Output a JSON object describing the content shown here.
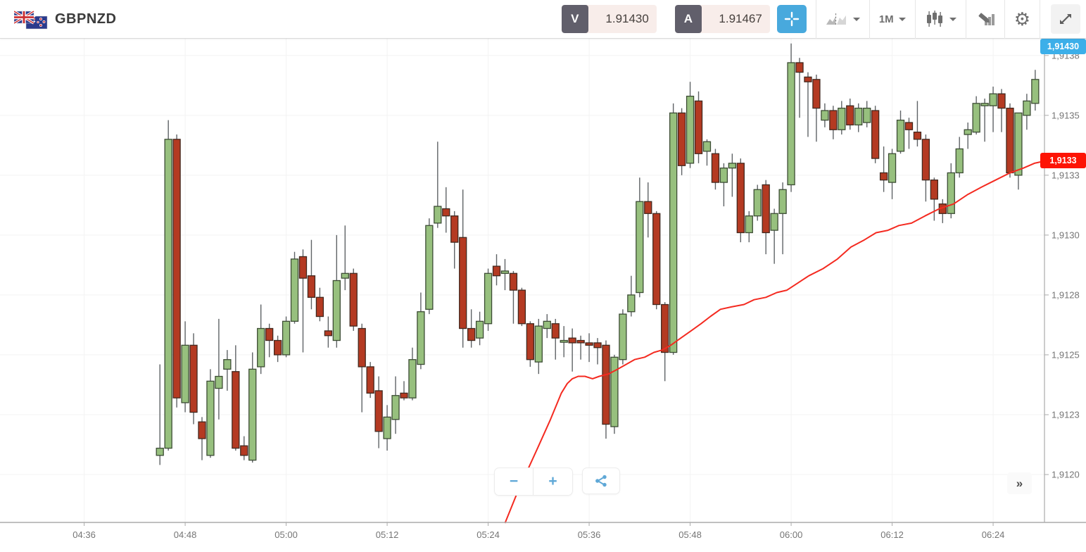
{
  "header": {
    "symbol": "GBPNZD",
    "bid": {
      "label": "V",
      "value": "1.91430"
    },
    "ask": {
      "label": "A",
      "value": "1.91467"
    },
    "timeframe": "1M",
    "icons": {
      "gear_glyph": "⚙"
    }
  },
  "controls": {
    "zoom_out": "−",
    "zoom_in": "+",
    "collapse": "»"
  },
  "colors": {
    "bull": "#97c07e",
    "bull_stroke": "#3c4c34",
    "bear": "#b43a22",
    "bear_stroke": "#43291f",
    "wick": "#5f6366",
    "ma": "#f42a20",
    "grid": "#f3f3f3",
    "axis": "#ababab",
    "axis_text": "#757575",
    "bid_tag_bg": "#3cafe9",
    "ma_tag_bg": "#fd1405",
    "accent_blue": "#48a9dd"
  },
  "chart_data": {
    "type": "candlestick",
    "title": "GBPNZD 1M candlestick chart with moving average",
    "interval_min": 1,
    "start_time": "04:45",
    "x_axis": {
      "labels": [
        "04:36",
        "04:48",
        "05:00",
        "05:12",
        "05:24",
        "05:36",
        "05:48",
        "06:00",
        "06:12",
        "06:24"
      ],
      "label_minutes": [
        0,
        12,
        24,
        36,
        48,
        60,
        72,
        84,
        96,
        108
      ],
      "xlim_minutes": [
        -10.0,
        114.1
      ]
    },
    "y_axis": {
      "labels": [
        {
          "text": "1,9138",
          "price": 1.91375
        },
        {
          "text": "1,9135",
          "price": 1.9135
        },
        {
          "text": "1,9133",
          "price": 1.91325
        },
        {
          "text": "1,9130",
          "price": 1.913
        },
        {
          "text": "1,9128",
          "price": 1.91275
        },
        {
          "text": "1,9125",
          "price": 1.9125
        },
        {
          "text": "1,9123",
          "price": 1.91225
        },
        {
          "text": "1,9120",
          "price": 1.912
        }
      ],
      "ylim": [
        1.9118,
        1.91382
      ]
    },
    "grid": true,
    "bid_tag": {
      "text": "1,91430",
      "price": 1.9143,
      "pinned": "top"
    },
    "ma_tag": {
      "text": "1,9133",
      "price": 1.91331
    },
    "candles": [
      [
        1.91208,
        1.91246,
        1.91204,
        1.91211
      ],
      [
        1.91211,
        1.91348,
        1.9121,
        1.9134
      ],
      [
        1.9134,
        1.91342,
        1.91228,
        1.91232
      ],
      [
        1.9123,
        1.91264,
        1.91226,
        1.91254
      ],
      [
        1.91254,
        1.91259,
        1.91221,
        1.91226
      ],
      [
        1.91222,
        1.91224,
        1.91206,
        1.91215
      ],
      [
        1.91208,
        1.91244,
        1.91207,
        1.91239
      ],
      [
        1.91236,
        1.91265,
        1.91223,
        1.91241
      ],
      [
        1.91244,
        1.91252,
        1.91235,
        1.91248
      ],
      [
        1.91243,
        1.91254,
        1.9121,
        1.91211
      ],
      [
        1.91212,
        1.91216,
        1.91206,
        1.91208
      ],
      [
        1.91206,
        1.91251,
        1.91205,
        1.91244
      ],
      [
        1.91245,
        1.91271,
        1.91242,
        1.91261
      ],
      [
        1.91261,
        1.91263,
        1.91249,
        1.91256
      ],
      [
        1.91256,
        1.91258,
        1.91247,
        1.9125
      ],
      [
        1.9125,
        1.91266,
        1.91249,
        1.91264
      ],
      [
        1.91264,
        1.91293,
        1.91263,
        1.9129
      ],
      [
        1.91291,
        1.91294,
        1.91251,
        1.91282
      ],
      [
        1.91283,
        1.91298,
        1.91269,
        1.91274
      ],
      [
        1.91274,
        1.91278,
        1.91264,
        1.91266
      ],
      [
        1.9126,
        1.91266,
        1.91253,
        1.91258
      ],
      [
        1.91256,
        1.913,
        1.91253,
        1.91281
      ],
      [
        1.91282,
        1.91304,
        1.91277,
        1.91284
      ],
      [
        1.91284,
        1.91286,
        1.9126,
        1.91262
      ],
      [
        1.91261,
        1.91263,
        1.91226,
        1.91245
      ],
      [
        1.91245,
        1.91247,
        1.91232,
        1.91234
      ],
      [
        1.91235,
        1.91241,
        1.91211,
        1.91218
      ],
      [
        1.91215,
        1.91229,
        1.9121,
        1.91224
      ],
      [
        1.91223,
        1.91241,
        1.91217,
        1.91233
      ],
      [
        1.91234,
        1.91239,
        1.91231,
        1.91232
      ],
      [
        1.91232,
        1.91253,
        1.91231,
        1.91248
      ],
      [
        1.91246,
        1.91276,
        1.91244,
        1.91268
      ],
      [
        1.91269,
        1.91307,
        1.91267,
        1.91304
      ],
      [
        1.91305,
        1.91339,
        1.91303,
        1.91312
      ],
      [
        1.91311,
        1.9132,
        1.91301,
        1.91308
      ],
      [
        1.91308,
        1.9131,
        1.91286,
        1.91297
      ],
      [
        1.91299,
        1.91319,
        1.91253,
        1.91261
      ],
      [
        1.91261,
        1.91269,
        1.91253,
        1.91256
      ],
      [
        1.91257,
        1.91268,
        1.91254,
        1.91264
      ],
      [
        1.91263,
        1.91286,
        1.9126,
        1.91284
      ],
      [
        1.91287,
        1.91292,
        1.91279,
        1.91283
      ],
      [
        1.91284,
        1.9129,
        1.91277,
        1.91285
      ],
      [
        1.91284,
        1.91285,
        1.91263,
        1.91277
      ],
      [
        1.91277,
        1.91278,
        1.91262,
        1.91263
      ],
      [
        1.91263,
        1.91264,
        1.91245,
        1.91248
      ],
      [
        1.91247,
        1.91265,
        1.91242,
        1.91262
      ],
      [
        1.91261,
        1.91267,
        1.91257,
        1.91264
      ],
      [
        1.91263,
        1.91265,
        1.91248,
        1.91257
      ],
      [
        1.91256,
        1.91262,
        1.91249,
        1.91256
      ],
      [
        1.91257,
        1.91261,
        1.91243,
        1.91255
      ],
      [
        1.91256,
        1.91258,
        1.91248,
        1.91255
      ],
      [
        1.91255,
        1.91259,
        1.91247,
        1.91254
      ],
      [
        1.91255,
        1.91257,
        1.91246,
        1.91253
      ],
      [
        1.91254,
        1.91256,
        1.91215,
        1.91221
      ],
      [
        1.9122,
        1.9125,
        1.91217,
        1.91249
      ],
      [
        1.91248,
        1.91269,
        1.91246,
        1.91267
      ],
      [
        1.91268,
        1.91283,
        1.91266,
        1.91275
      ],
      [
        1.91276,
        1.91324,
        1.91274,
        1.91314
      ],
      [
        1.91314,
        1.91322,
        1.91299,
        1.91309
      ],
      [
        1.91309,
        1.9131,
        1.91269,
        1.91271
      ],
      [
        1.91271,
        1.91272,
        1.91239,
        1.91251
      ],
      [
        1.91251,
        1.91355,
        1.9125,
        1.91351
      ],
      [
        1.91351,
        1.91353,
        1.91325,
        1.91329
      ],
      [
        1.9133,
        1.91364,
        1.91328,
        1.91358
      ],
      [
        1.91356,
        1.9136,
        1.9133,
        1.91334
      ],
      [
        1.91335,
        1.9134,
        1.91329,
        1.91339
      ],
      [
        1.91334,
        1.91336,
        1.91319,
        1.91322
      ],
      [
        1.91322,
        1.9133,
        1.91312,
        1.91328
      ],
      [
        1.91328,
        1.91334,
        1.91316,
        1.9133
      ],
      [
        1.9133,
        1.91332,
        1.91297,
        1.91301
      ],
      [
        1.91301,
        1.9131,
        1.91297,
        1.91308
      ],
      [
        1.91308,
        1.91321,
        1.91306,
        1.91319
      ],
      [
        1.91321,
        1.91323,
        1.91292,
        1.91301
      ],
      [
        1.91302,
        1.91311,
        1.91288,
        1.91309
      ],
      [
        1.91309,
        1.91322,
        1.91292,
        1.91319
      ],
      [
        1.91321,
        1.9138,
        1.91318,
        1.91372
      ],
      [
        1.91372,
        1.91374,
        1.91349,
        1.91368
      ],
      [
        1.91366,
        1.91368,
        1.91341,
        1.91364
      ],
      [
        1.91365,
        1.91367,
        1.91339,
        1.91353
      ],
      [
        1.91348,
        1.91355,
        1.91345,
        1.91352
      ],
      [
        1.91352,
        1.91354,
        1.9134,
        1.91344
      ],
      [
        1.91344,
        1.91356,
        1.91342,
        1.91353
      ],
      [
        1.91354,
        1.91357,
        1.91344,
        1.91346
      ],
      [
        1.91346,
        1.91355,
        1.91343,
        1.91353
      ],
      [
        1.91347,
        1.91356,
        1.91345,
        1.91353
      ],
      [
        1.91352,
        1.91354,
        1.9133,
        1.91332
      ],
      [
        1.91326,
        1.91337,
        1.91318,
        1.91323
      ],
      [
        1.91322,
        1.91336,
        1.91315,
        1.91334
      ],
      [
        1.91335,
        1.91352,
        1.91334,
        1.91348
      ],
      [
        1.91347,
        1.91349,
        1.91336,
        1.91344
      ],
      [
        1.91343,
        1.91356,
        1.91337,
        1.9134
      ],
      [
        1.9134,
        1.91342,
        1.91314,
        1.91323
      ],
      [
        1.91323,
        1.91324,
        1.91306,
        1.91315
      ],
      [
        1.91313,
        1.91315,
        1.91305,
        1.91309
      ],
      [
        1.91309,
        1.9133,
        1.91307,
        1.91326
      ],
      [
        1.91326,
        1.91341,
        1.91324,
        1.91336
      ],
      [
        1.91342,
        1.91347,
        1.91336,
        1.91344
      ],
      [
        1.91343,
        1.91358,
        1.91342,
        1.91355
      ],
      [
        1.91354,
        1.91357,
        1.91339,
        1.91355
      ],
      [
        1.91354,
        1.91362,
        1.91343,
        1.91359
      ],
      [
        1.91359,
        1.91361,
        1.91343,
        1.91353
      ],
      [
        1.91353,
        1.91355,
        1.91324,
        1.91326
      ],
      [
        1.91325,
        1.91351,
        1.91319,
        1.91351
      ],
      [
        1.9135,
        1.91359,
        1.91344,
        1.91356
      ],
      [
        1.91355,
        1.91369,
        1.91352,
        1.91365
      ]
    ],
    "ma_line": [
      [
        50.0,
        1.91179
      ],
      [
        51.3,
        1.91191
      ],
      [
        52.7,
        1.91202
      ],
      [
        54.0,
        1.91212
      ],
      [
        55.4,
        1.91223
      ],
      [
        56.7,
        1.91234
      ],
      [
        57.4,
        1.91238
      ],
      [
        58.0,
        1.9124
      ],
      [
        58.7,
        1.91241
      ],
      [
        59.5,
        1.91241
      ],
      [
        60.4,
        1.9124
      ],
      [
        61.2,
        1.91241
      ],
      [
        62.3,
        1.91242
      ],
      [
        63.4,
        1.91244
      ],
      [
        64.4,
        1.91246
      ],
      [
        65.4,
        1.91248
      ],
      [
        66.6,
        1.91249
      ],
      [
        67.7,
        1.91251
      ],
      [
        68.7,
        1.91252
      ],
      [
        69.7,
        1.91254
      ],
      [
        70.9,
        1.91257
      ],
      [
        72.1,
        1.9126
      ],
      [
        73.3,
        1.91263
      ],
      [
        74.4,
        1.91266
      ],
      [
        75.6,
        1.91269
      ],
      [
        76.9,
        1.9127
      ],
      [
        78.4,
        1.91271
      ],
      [
        79.6,
        1.91273
      ],
      [
        81.0,
        1.91274
      ],
      [
        82.3,
        1.91276
      ],
      [
        83.5,
        1.91277
      ],
      [
        84.8,
        1.9128
      ],
      [
        86.1,
        1.91283
      ],
      [
        87.8,
        1.91286
      ],
      [
        89.5,
        1.9129
      ],
      [
        91.1,
        1.91295
      ],
      [
        92.7,
        1.91298
      ],
      [
        94.1,
        1.91301
      ],
      [
        95.5,
        1.91302
      ],
      [
        96.8,
        1.91304
      ],
      [
        98.3,
        1.91305
      ],
      [
        99.9,
        1.91308
      ],
      [
        101.6,
        1.91311
      ],
      [
        103.3,
        1.91313
      ],
      [
        105.0,
        1.91317
      ],
      [
        106.6,
        1.9132
      ],
      [
        108.3,
        1.91323
      ],
      [
        110.0,
        1.91326
      ],
      [
        111.6,
        1.91328
      ],
      [
        112.9,
        1.9133
      ],
      [
        114.2,
        1.91331
      ]
    ]
  }
}
